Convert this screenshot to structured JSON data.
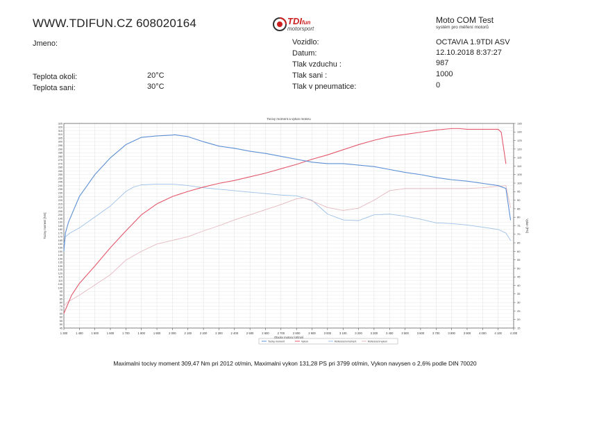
{
  "header": {
    "site": "WWW.TDIFUN.CZ 608020164",
    "logo_main": "TDI",
    "logo_small": "fun",
    "logo_sub": "motorsport",
    "brand_title": "Moto COM Test",
    "brand_sub": "systém pro měření motorů"
  },
  "info_left": {
    "jmeno_label": "Jmeno:",
    "jmeno_value": "",
    "teplota_okoli_label": "Teplota okoli:",
    "teplota_okoli_value": "20°C",
    "teplota_sani_label": "Teplota sani:",
    "teplota_sani_value": "30°C"
  },
  "info_right": {
    "vozidlo_label": "Vozidlo:",
    "vozidlo_value": "OCTAVIA 1.9TDI ASV",
    "datum_label": "Datum:",
    "datum_value": "12.10.2018 8:37:27",
    "tlak_vzduchu_label": "Tlak vzduchu :",
    "tlak_vzduchu_value": "987",
    "tlak_sani_label": "Tlak sani :",
    "tlak_sani_value": "1000",
    "tlak_pneu_label": "Tlak v pneumatice:",
    "tlak_pneu_value": "0"
  },
  "chart_data": {
    "type": "line",
    "title": "Tocivy moment a vykon motoru",
    "xlabel": "Otacky motoru [ot/min]",
    "ylabel_left": "Tocivy moment [Nm]",
    "ylabel_right": "Vykon [PS]",
    "xlim": [
      1300,
      4200
    ],
    "ylim_left": [
      45,
      325
    ],
    "ylim_right": [
      15,
      135
    ],
    "x_ticks": [
      "1 300",
      "1 400",
      "1 500",
      "1 600",
      "1 700",
      "1 800",
      "1 900",
      "2 000",
      "2 100",
      "2 200",
      "2 300",
      "2 400",
      "2 500",
      "2 600",
      "2 700",
      "2 800",
      "2 900",
      "3 000",
      "3 100",
      "3 200",
      "3 300",
      "3 400",
      "3 500",
      "3 600",
      "3 700",
      "3 800",
      "3 900",
      "4 000",
      "4 100",
      "4 200"
    ],
    "y_ticks_left": [
      45,
      50,
      55,
      60,
      65,
      70,
      75,
      80,
      85,
      90,
      95,
      100,
      105,
      110,
      115,
      120,
      125,
      130,
      135,
      140,
      145,
      150,
      155,
      160,
      165,
      170,
      175,
      180,
      185,
      190,
      195,
      200,
      205,
      210,
      215,
      220,
      225,
      230,
      235,
      240,
      245,
      250,
      255,
      260,
      265,
      270,
      275,
      280,
      285,
      290,
      295,
      300,
      305,
      310,
      315,
      320,
      325
    ],
    "y_ticks_right": [
      15,
      20,
      25,
      30,
      35,
      40,
      45,
      50,
      55,
      60,
      65,
      70,
      75,
      80,
      85,
      90,
      95,
      100,
      105,
      110,
      115,
      120,
      125,
      130,
      135
    ],
    "grid": true,
    "legend_position": "bottom",
    "colors": {
      "torque": "#5b8fd4",
      "power": "#e4576a",
      "ref_torque": "#9cc0e8",
      "ref_power": "#e6b8bf",
      "grid": "#d8d8d8",
      "axis": "#333333"
    },
    "series": [
      {
        "name": "Tocivy moment",
        "axis": "left",
        "color_key": "torque",
        "x": [
          1300,
          1310,
          1330,
          1360,
          1400,
          1450,
          1500,
          1600,
          1700,
          1800,
          1900,
          2000,
          2012,
          2100,
          2200,
          2300,
          2400,
          2500,
          2600,
          2700,
          2800,
          2900,
          3000,
          3100,
          3200,
          3300,
          3400,
          3500,
          3600,
          3700,
          3800,
          3900,
          4000,
          4100,
          4150,
          4180
        ],
        "y": [
          150,
          175,
          190,
          205,
          225,
          240,
          255,
          278,
          296,
          306,
          308,
          309,
          309.5,
          307,
          300,
          294,
          291,
          287,
          284,
          280,
          276,
          272,
          270,
          270,
          268,
          266,
          262,
          258,
          255,
          251,
          248,
          246,
          243,
          240,
          236,
          193
        ]
      },
      {
        "name": "Vykon",
        "axis": "left",
        "color_key": "power",
        "x": [
          1300,
          1320,
          1350,
          1400,
          1450,
          1500,
          1600,
          1700,
          1800,
          1900,
          2000,
          2100,
          2200,
          2300,
          2400,
          2500,
          2600,
          2700,
          2800,
          2900,
          3000,
          3100,
          3200,
          3300,
          3400,
          3500,
          3600,
          3700,
          3799,
          3850,
          3900,
          4000,
          4100,
          4120,
          4150
        ],
        "y": [
          65,
          75,
          90,
          106,
          118,
          130,
          155,
          178,
          200,
          215,
          225,
          232,
          238,
          243,
          247,
          252,
          257,
          263,
          269,
          276,
          282,
          289,
          296,
          302,
          307,
          310,
          313,
          316,
          318,
          318,
          317,
          317,
          317,
          313,
          270
        ]
      },
      {
        "name": "Referencni moment",
        "axis": "left",
        "color_key": "ref_torque",
        "x": [
          1300,
          1310,
          1340,
          1400,
          1500,
          1600,
          1700,
          1750,
          1800,
          1900,
          2000,
          2100,
          2200,
          2300,
          2400,
          2500,
          2600,
          2700,
          2800,
          2900,
          3000,
          3100,
          3200,
          3250,
          3300,
          3400,
          3500,
          3600,
          3700,
          3800,
          3900,
          4000,
          4100,
          4150,
          4180
        ],
        "y": [
          160,
          170,
          175,
          182,
          197,
          212,
          232,
          238,
          241,
          242,
          242,
          240,
          237,
          235,
          233,
          231,
          229,
          227,
          226,
          220,
          201,
          193,
          192,
          196,
          200,
          201,
          198,
          194,
          189,
          188,
          186,
          183,
          180,
          175,
          165
        ]
      },
      {
        "name": "Referencni vykon",
        "axis": "left",
        "color_key": "ref_power",
        "x": [
          1300,
          1320,
          1360,
          1400,
          1450,
          1500,
          1600,
          1700,
          1800,
          1900,
          2000,
          2100,
          2200,
          2300,
          2400,
          2500,
          2600,
          2700,
          2800,
          2850,
          2900,
          3000,
          3100,
          3200,
          3300,
          3400,
          3500,
          3600,
          3700,
          3800,
          3900,
          4000,
          4100,
          4150,
          4180
        ],
        "y": [
          75,
          80,
          85,
          90,
          97,
          104,
          118,
          138,
          150,
          160,
          165,
          170,
          178,
          185,
          193,
          200,
          207,
          214,
          222,
          223,
          219,
          210,
          206,
          209,
          220,
          233,
          236,
          236,
          236,
          236,
          236,
          237,
          239,
          240,
          210
        ]
      }
    ],
    "legend": [
      "Tocivy moment",
      "Vykon",
      "Referencni moment",
      "Referencni vykon"
    ]
  },
  "summary": "Maximalni tocivy moment 309,47 Nm pri 2012 ot/min,  Maximalni vykon 131,28 PS pri 3799 ot/min,  Vykon navysen o 2,6% podle DIN 70020"
}
